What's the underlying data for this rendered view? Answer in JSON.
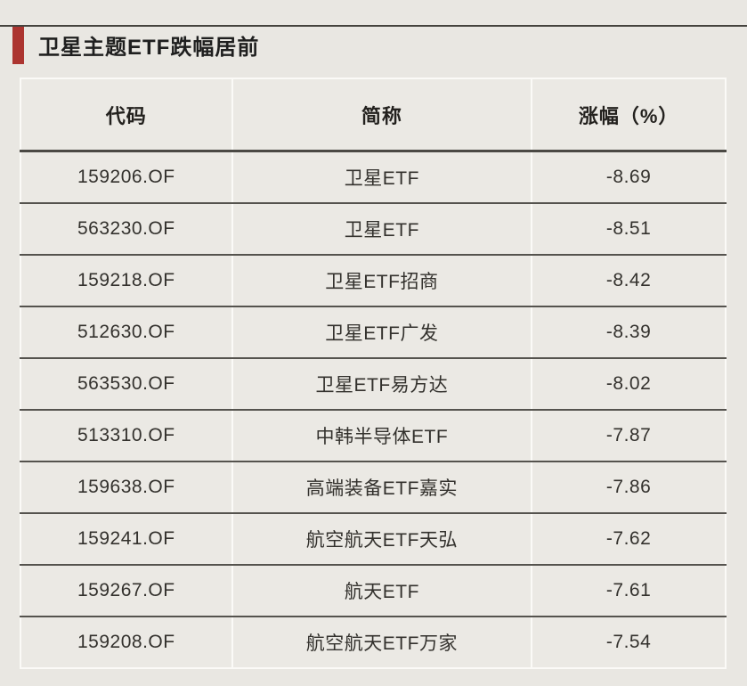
{
  "header": {
    "title": "卫星主题ETF跌幅居前"
  },
  "colors": {
    "accent_red": "#ac3530",
    "background": "#e9e7e2",
    "dark_separator": "#55534e",
    "light_separator": "#fbfaf7",
    "text": "#33312d"
  },
  "chart_data": {
    "type": "table",
    "title": "卫星主题ETF跌幅居前",
    "columns": [
      "代码",
      "简称",
      "涨幅（%）"
    ],
    "rows": [
      [
        "159206.OF",
        "卫星ETF",
        "-8.69"
      ],
      [
        "563230.OF",
        "卫星ETF",
        "-8.51"
      ],
      [
        "159218.OF",
        "卫星ETF招商",
        "-8.42"
      ],
      [
        "512630.OF",
        "卫星ETF广发",
        "-8.39"
      ],
      [
        "563530.OF",
        "卫星ETF易方达",
        "-8.02"
      ],
      [
        "513310.OF",
        "中韩半导体ETF",
        "-7.87"
      ],
      [
        "159638.OF",
        "高端装备ETF嘉实",
        "-7.86"
      ],
      [
        "159241.OF",
        "航空航天ETF天弘",
        "-7.62"
      ],
      [
        "159267.OF",
        "航天ETF",
        "-7.61"
      ],
      [
        "159208.OF",
        "航空航天ETF万家",
        "-7.54"
      ]
    ]
  }
}
